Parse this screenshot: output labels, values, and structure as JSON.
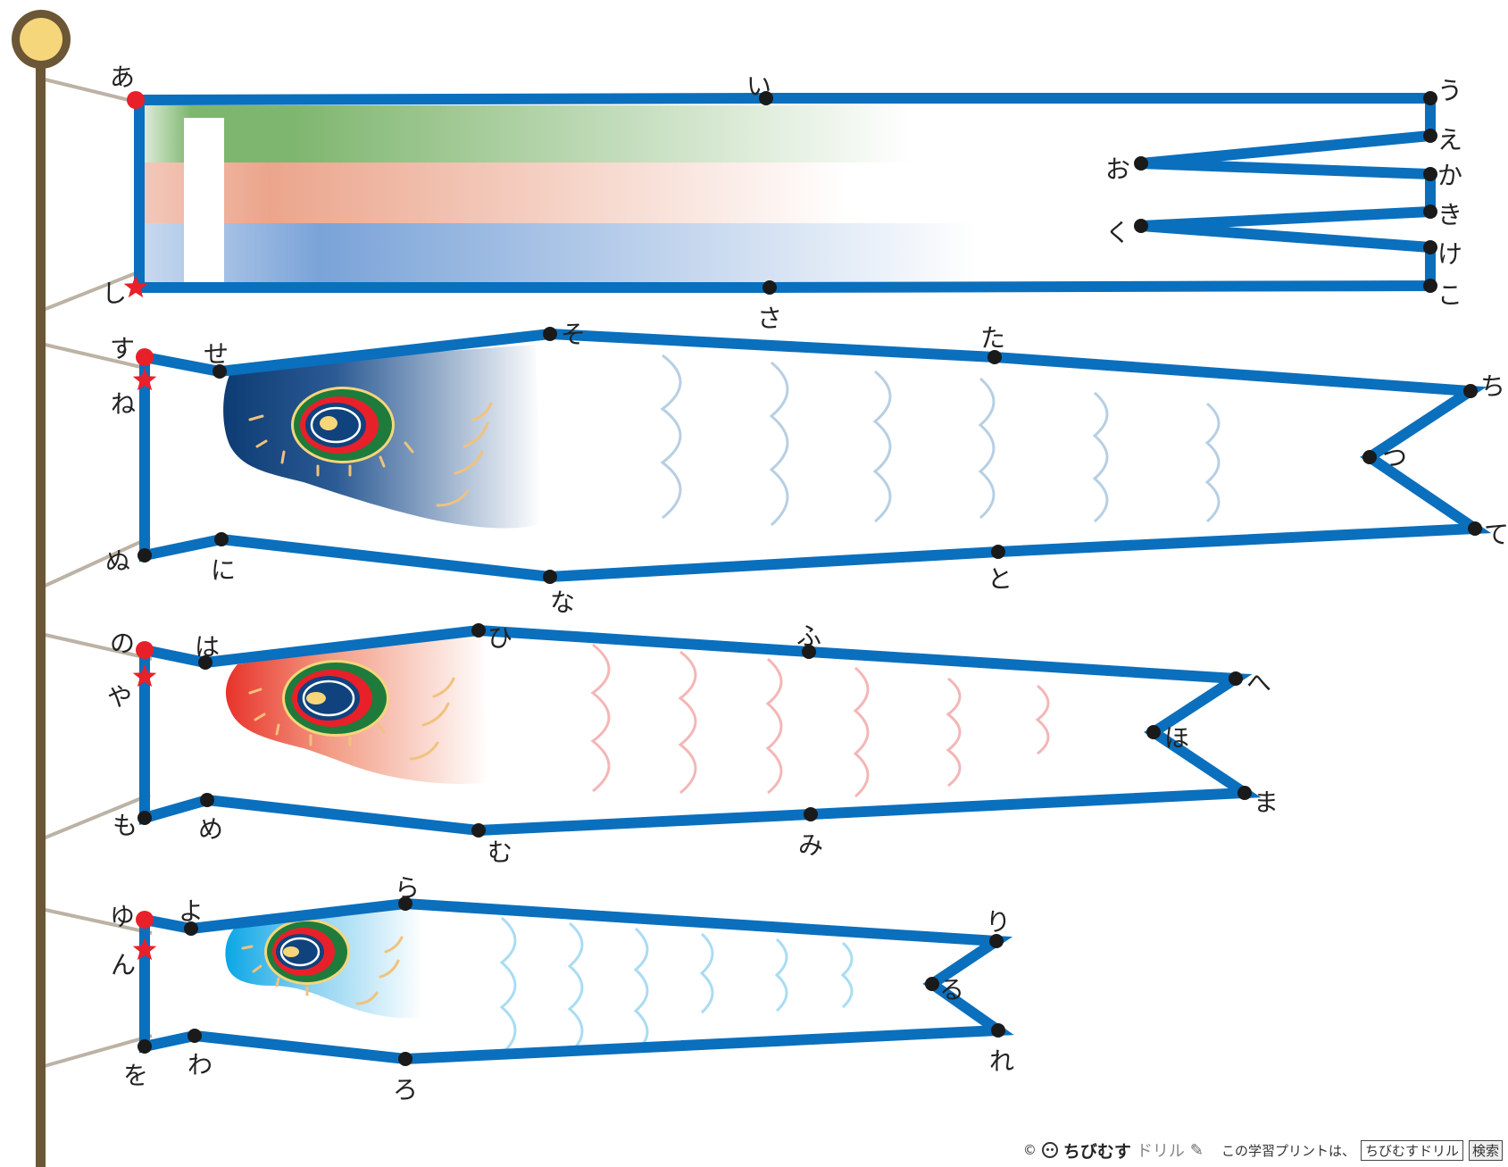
{
  "puzzle": {
    "kind": "dot-to-dot",
    "streamer": {
      "labels": [
        "あ",
        "い",
        "う",
        "え",
        "お",
        "か",
        "き",
        "く",
        "け",
        "こ",
        "さ",
        "し"
      ],
      "band_colors": [
        "#8cbf7e",
        "#eba58c",
        "#7aa3d8"
      ]
    },
    "carp_black": {
      "labels": [
        "す",
        "せ",
        "そ",
        "た",
        "ち",
        "つ",
        "て",
        "と",
        "な",
        "に",
        "ぬ",
        "ね"
      ],
      "body_color": "#10427d"
    },
    "carp_red": {
      "labels": [
        "の",
        "は",
        "ひ",
        "ふ",
        "へ",
        "ほ",
        "ま",
        "み",
        "む",
        "め",
        "も",
        "や"
      ],
      "body_color": "#e8332a"
    },
    "carp_small": {
      "labels": [
        "ゆ",
        "よ",
        "ら",
        "り",
        "る",
        "れ",
        "ろ",
        "わ",
        "を",
        "ん"
      ],
      "body_color": "#18a9e8"
    },
    "colors": {
      "outline": "#0a6fbd",
      "start_dot": "#e8202a",
      "pole": "#6b5635",
      "pole_cap": "#f6d67a",
      "rope": "#bcb2a5"
    }
  },
  "footer": {
    "copyright": "©",
    "brand": "ちびむす",
    "brand_sub": "ドリル",
    "pencil_icon": "pencil-icon",
    "message": "この学習プリントは、",
    "search_box": "ちびむすドリル",
    "search_button": "検索"
  }
}
